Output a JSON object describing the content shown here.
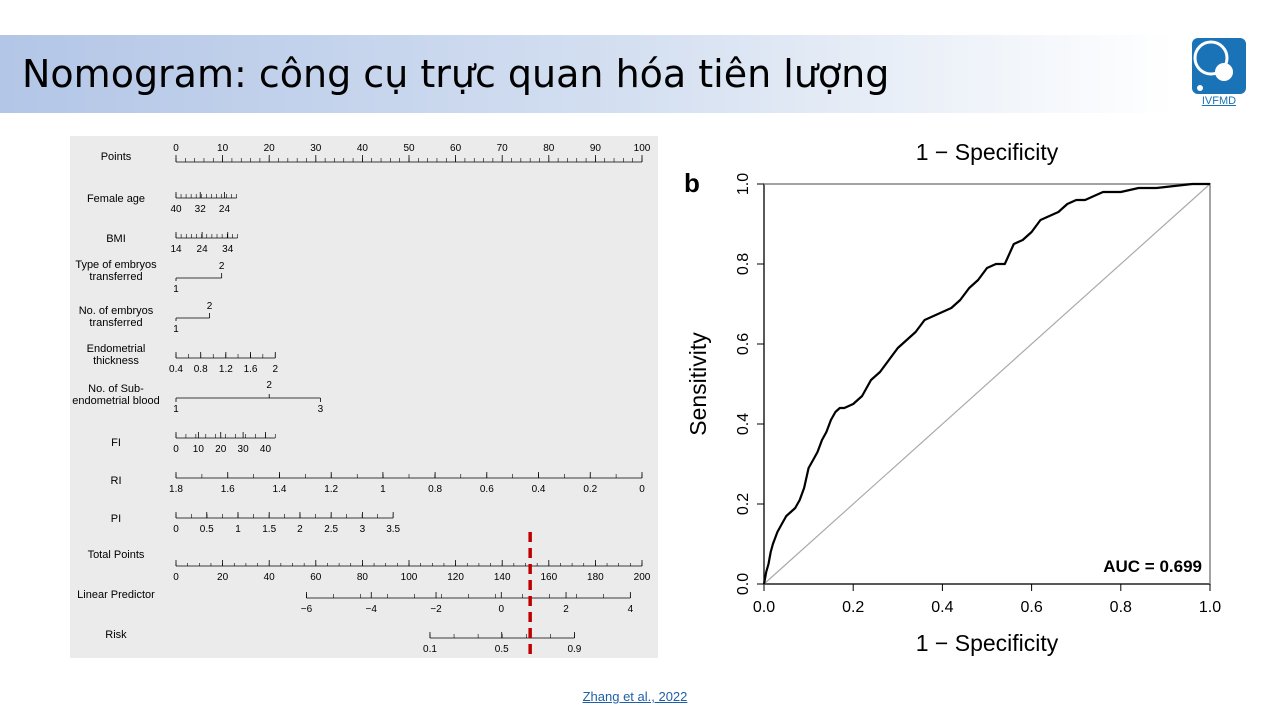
{
  "slide": {
    "title": "Nomogram: công cụ trực quan hóa tiên lượng",
    "logo_text": "IVFMD",
    "citation": "Zhang et al., 2022"
  },
  "colors": {
    "title_band": "#b3c6e7",
    "logo_blue": "#1a72b7",
    "marker_red": "#c00000",
    "panel_bg": "#ebebeb"
  },
  "nomogram": {
    "rows": [
      {
        "id": "points",
        "label": [
          "Points"
        ],
        "domain": [
          0,
          100
        ],
        "ticks": [
          0,
          10,
          20,
          30,
          40,
          50,
          60,
          70,
          80,
          90,
          100
        ],
        "minor_step": 2
      },
      {
        "id": "female-age",
        "label": [
          "Female age"
        ],
        "ticks": [
          "40",
          "32",
          "24"
        ]
      },
      {
        "id": "bmi",
        "label": [
          "BMI"
        ],
        "ticks": [
          "14",
          "24",
          "34"
        ]
      },
      {
        "id": "type-embryos",
        "label": [
          "Type of embryos",
          "transferred"
        ],
        "ticks": [
          "1",
          "2"
        ]
      },
      {
        "id": "no-embryos",
        "label": [
          "No. of embryos",
          "transferred"
        ],
        "ticks": [
          "1",
          "2"
        ]
      },
      {
        "id": "endometrial",
        "label": [
          "Endometrial",
          "thickness"
        ],
        "ticks": [
          "0.4",
          "0.8",
          "1.2",
          "1.6",
          "2"
        ]
      },
      {
        "id": "subendometrial",
        "label": [
          "No. of Sub-",
          "endometrial blood"
        ],
        "ticks": [
          "1",
          "2",
          "3"
        ]
      },
      {
        "id": "fi",
        "label": [
          "FI"
        ],
        "ticks": [
          "0",
          "10",
          "20",
          "30",
          "40"
        ]
      },
      {
        "id": "ri",
        "label": [
          "RI"
        ],
        "ticks": [
          "1.8",
          "1.6",
          "1.4",
          "1.2",
          "1",
          "0.8",
          "0.6",
          "0.4",
          "0.2",
          "0"
        ]
      },
      {
        "id": "pi",
        "label": [
          "PI"
        ],
        "ticks": [
          "0",
          "0.5",
          "1",
          "1.5",
          "2",
          "2.5",
          "3",
          "3.5"
        ]
      },
      {
        "id": "total-points",
        "label": [
          "Total Points"
        ],
        "domain": [
          0,
          200
        ],
        "ticks": [
          0,
          20,
          40,
          60,
          80,
          100,
          120,
          140,
          160,
          180,
          200
        ]
      },
      {
        "id": "linear-predictor",
        "label": [
          "Linear Predictor"
        ],
        "ticks": [
          "−6",
          "−4",
          "−2",
          "0",
          "2",
          "4"
        ]
      },
      {
        "id": "risk",
        "label": [
          "Risk"
        ],
        "ticks": [
          "0.1",
          "0.5",
          "0.9"
        ]
      }
    ],
    "marker_total_points": 152
  },
  "chart_data": {
    "type": "line",
    "panel_letter": "b",
    "title": "1 − Specificity",
    "xlabel": "1 − Specificity",
    "ylabel": "Sensitivity",
    "xlim": [
      0,
      1
    ],
    "ylim": [
      0,
      1
    ],
    "x_ticks": [
      "0.0",
      "0.2",
      "0.4",
      "0.6",
      "0.8",
      "1.0"
    ],
    "y_ticks": [
      "0.0",
      "0.2",
      "0.4",
      "0.6",
      "0.8",
      "1.0"
    ],
    "annotation": "AUC = 0.699",
    "series": [
      {
        "x": [
          0,
          0.005,
          0.01,
          0.015,
          0.02,
          0.03,
          0.04,
          0.05,
          0.06,
          0.07,
          0.08,
          0.09,
          0.1,
          0.11,
          0.12,
          0.13,
          0.14,
          0.15,
          0.16,
          0.17,
          0.18,
          0.2,
          0.22,
          0.24,
          0.26,
          0.28,
          0.3,
          0.32,
          0.34,
          0.36,
          0.38,
          0.4,
          0.42,
          0.44,
          0.46,
          0.48,
          0.5,
          0.52,
          0.54,
          0.56,
          0.58,
          0.6,
          0.62,
          0.64,
          0.66,
          0.68,
          0.7,
          0.72,
          0.74,
          0.76,
          0.8,
          0.84,
          0.88,
          0.92,
          0.96,
          1.0
        ],
        "y": [
          0,
          0.03,
          0.05,
          0.08,
          0.1,
          0.13,
          0.15,
          0.17,
          0.18,
          0.19,
          0.21,
          0.24,
          0.29,
          0.31,
          0.33,
          0.36,
          0.38,
          0.41,
          0.43,
          0.44,
          0.44,
          0.45,
          0.47,
          0.51,
          0.53,
          0.56,
          0.59,
          0.61,
          0.63,
          0.66,
          0.67,
          0.68,
          0.69,
          0.71,
          0.74,
          0.76,
          0.79,
          0.8,
          0.8,
          0.85,
          0.86,
          0.88,
          0.91,
          0.92,
          0.93,
          0.95,
          0.96,
          0.96,
          0.97,
          0.98,
          0.98,
          0.99,
          0.99,
          0.995,
          1.0,
          1.0
        ]
      },
      {
        "x": [
          0,
          1
        ],
        "y": [
          0,
          1
        ]
      }
    ]
  }
}
